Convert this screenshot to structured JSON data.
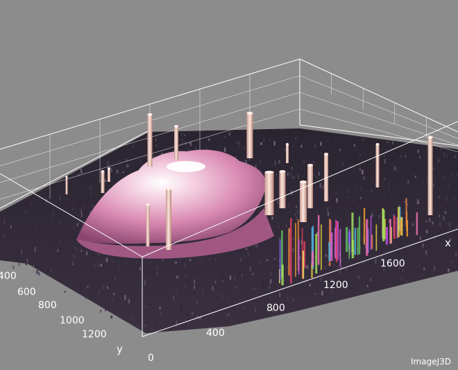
{
  "app": {
    "watermark": "ImageJ3D"
  },
  "chart_data": {
    "type": "surface",
    "title": "",
    "xlabel": "x",
    "ylabel": "y",
    "x_ticks": [
      0,
      400,
      800,
      1200,
      1600
    ],
    "y_ticks": [
      400,
      600,
      800,
      1000,
      1200
    ],
    "x_tick_labels": [
      "0",
      "400",
      "800",
      "1200",
      "1600"
    ],
    "y_tick_labels": [
      "400",
      "600",
      "800",
      "1000",
      "1200"
    ],
    "xlim": [
      0,
      2000
    ],
    "ylim": [
      0,
      1400
    ],
    "grid": true,
    "legend": "none",
    "colors": {
      "background": "#8c8c8c",
      "floor_low": "#2a2430",
      "mid": "#a85a8a",
      "high": "#f2c8d8",
      "peak": "#ffffff",
      "box_lines": "#ffffff"
    },
    "features": [
      {
        "name": "plateau",
        "x": 650,
        "y": 400,
        "height": 0.85
      },
      {
        "name": "spike",
        "x": 120,
        "y": 250,
        "height": 1.0
      },
      {
        "name": "spike",
        "x": 420,
        "y": 150,
        "height": 1.0
      },
      {
        "name": "spike",
        "x": 1450,
        "y": 200,
        "height": 0.95
      },
      {
        "name": "spike",
        "x": 1200,
        "y": 400,
        "height": 0.7
      },
      {
        "name": "spike",
        "x": 1000,
        "y": 520,
        "height": 0.6
      }
    ]
  }
}
